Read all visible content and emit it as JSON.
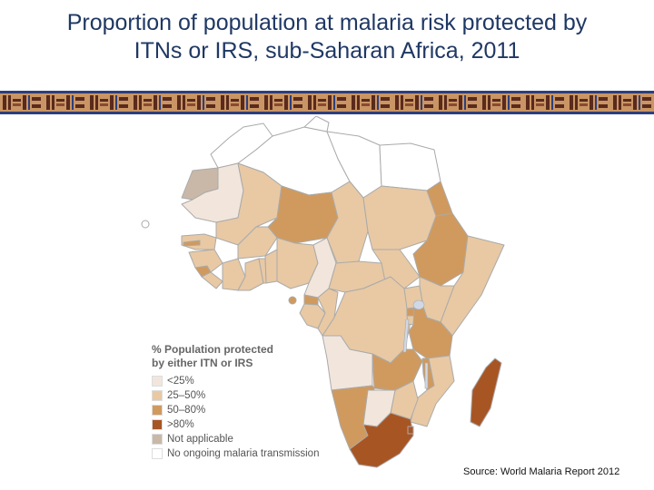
{
  "slide": {
    "title_line1": "Proportion of population at malaria risk protected by",
    "title_line2": "ITNs or IRS, sub-Saharan Africa, 2011"
  },
  "colors": {
    "title": "#1f3864",
    "band_dark": "#5a2a1c",
    "band_tan": "#c99565",
    "band_blue": "#2e3f7a",
    "lt25": "#f2e6dc",
    "25_50": "#e8c9a4",
    "50_80": "#d09a5e",
    "gt80": "#a85524",
    "not_applicable": "#c9b8a8",
    "no_transmission": "#ffffff",
    "border": "#aaaaaa"
  },
  "map": {
    "legend": {
      "title_line1": "% Population protected",
      "title_line2": "by either ITN or IRS",
      "items": [
        {
          "label": "<25%",
          "color": "#f2e6dc"
        },
        {
          "label": "25–50%",
          "color": "#e8c9a4"
        },
        {
          "label": "50–80%",
          "color": "#d09a5e"
        },
        {
          "label": ">80%",
          "color": "#a85524"
        },
        {
          "label": "Not applicable",
          "color": "#c9b8a8"
        },
        {
          "label": "No ongoing malaria transmission",
          "color": "#ffffff"
        }
      ]
    },
    "country_categories": {
      "Morocco": "no_transmission",
      "Algeria": "no_transmission",
      "Libya": "no_transmission",
      "Egypt": "no_transmission",
      "Tunisia": "no_transmission",
      "Western Sahara": "not_applicable",
      "Mauritania": "lt25",
      "Mali": "25_50",
      "Niger": "50_80",
      "Chad": "25_50",
      "Sudan": "25_50",
      "Eritrea": "50_80",
      "Ethiopia": "50_80",
      "Somalia": "25_50",
      "Senegal": "25_50",
      "Gambia": "50_80",
      "Guinea": "25_50",
      "Sierra Leone": "50_80",
      "Liberia": "25_50",
      "Cote d'Ivoire": "25_50",
      "Burkina Faso": "25_50",
      "Ghana": "25_50",
      "Togo": "25_50",
      "Benin": "25_50",
      "Nigeria": "25_50",
      "Cameroon": "lt25",
      "Central African Republic": "25_50",
      "South Sudan": "25_50",
      "Equatorial Guinea": "50_80",
      "Gabon": "25_50",
      "Congo": "25_50",
      "DR Congo": "25_50",
      "Uganda": "25_50",
      "Kenya": "25_50",
      "Rwanda": "50_80",
      "Burundi": "25_50",
      "Tanzania": "50_80",
      "Angola": "lt25",
      "Zambia": "50_80",
      "Malawi": "50_80",
      "Mozambique": "25_50",
      "Zimbabwe": "25_50",
      "Namibia": "50_80",
      "Botswana": "lt25",
      "South Africa": "gt80",
      "Swaziland": "gt80",
      "Madagascar": "gt80",
      "Sao Tome and Principe": "50_80",
      "Cape Verde": "no_transmission"
    }
  },
  "source": "Source: World Malaria Report 2012"
}
